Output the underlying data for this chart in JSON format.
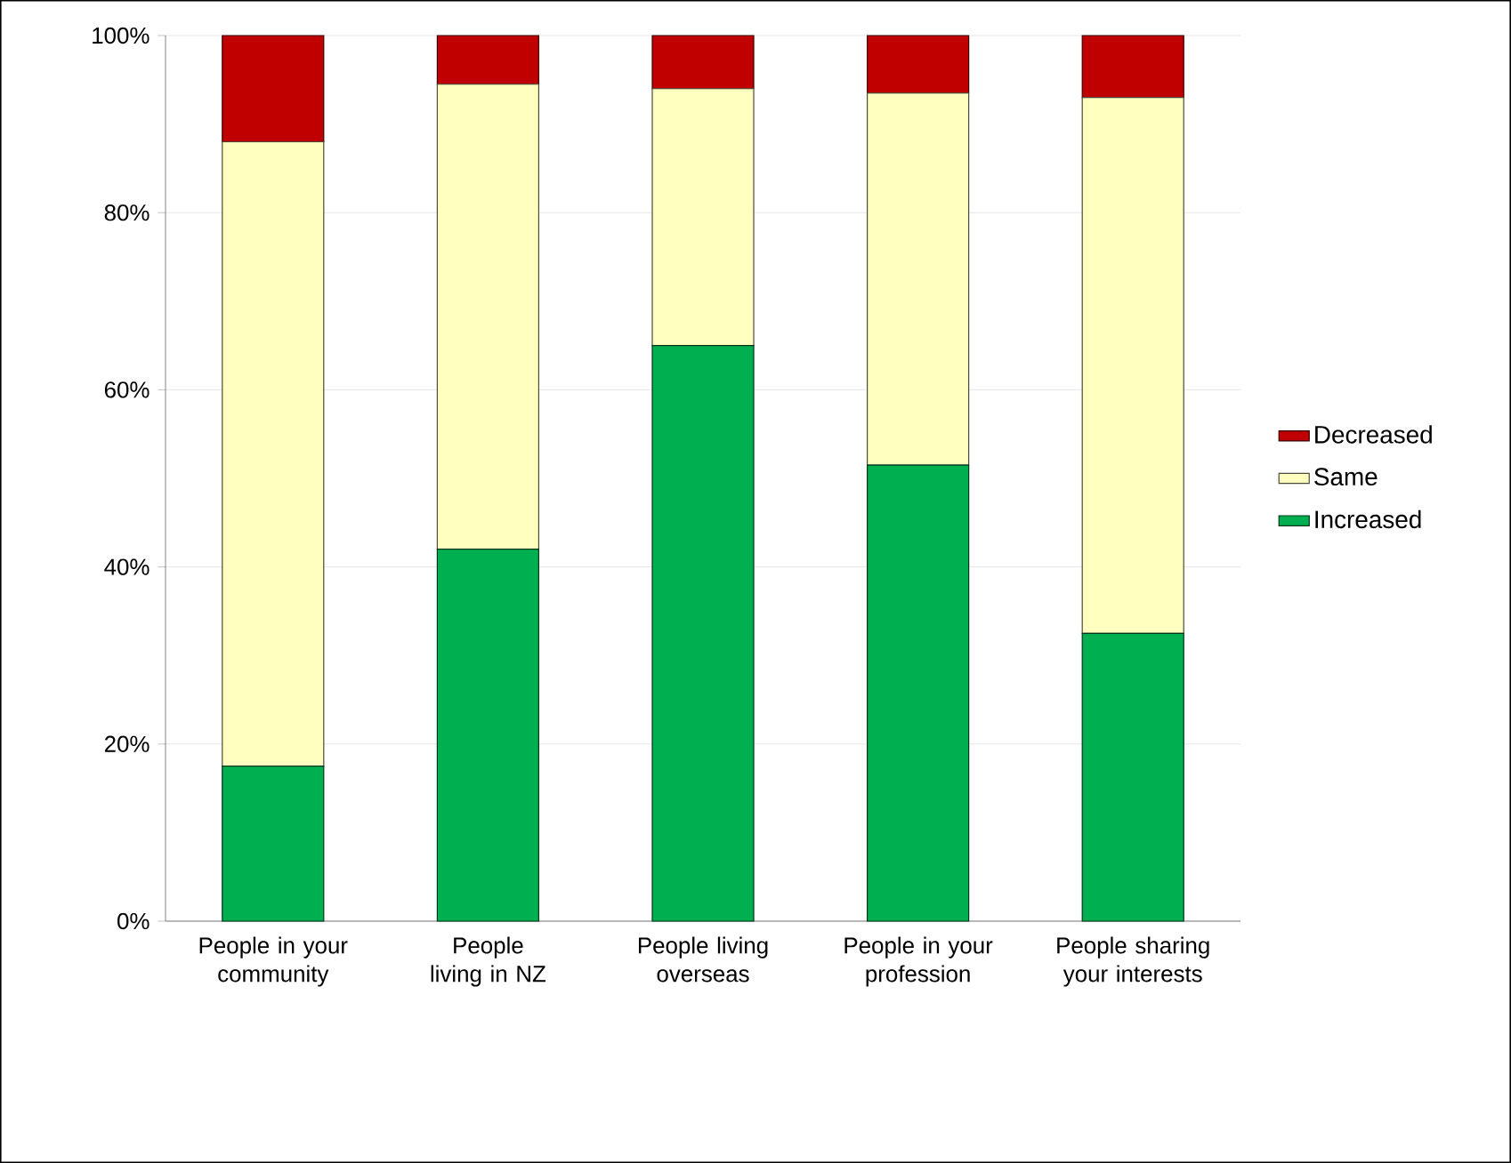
{
  "chart_data": {
    "type": "bar",
    "stacked": true,
    "categories": [
      "People in your community",
      "People living in NZ",
      "People living overseas",
      "People in your profession",
      "People sharing your interests"
    ],
    "series": [
      {
        "name": "Increased",
        "color": "#00b050",
        "values": [
          17.5,
          42,
          65,
          51.5,
          32.5
        ]
      },
      {
        "name": "Same",
        "color": "#ffffc0",
        "values": [
          70.5,
          52.5,
          29,
          42,
          60.5
        ]
      },
      {
        "name": "Decreased",
        "color": "#c00000",
        "values": [
          12,
          5.5,
          6,
          6.5,
          7
        ]
      }
    ],
    "ylim": [
      0,
      100
    ],
    "yticks": [
      {
        "value": 0,
        "label": "0%"
      },
      {
        "value": 20,
        "label": "20%"
      },
      {
        "value": 40,
        "label": "40%"
      },
      {
        "value": 60,
        "label": "60%"
      },
      {
        "value": 80,
        "label": "80%"
      },
      {
        "value": 100,
        "label": "100%"
      }
    ],
    "grid": "y",
    "legend": "right"
  }
}
